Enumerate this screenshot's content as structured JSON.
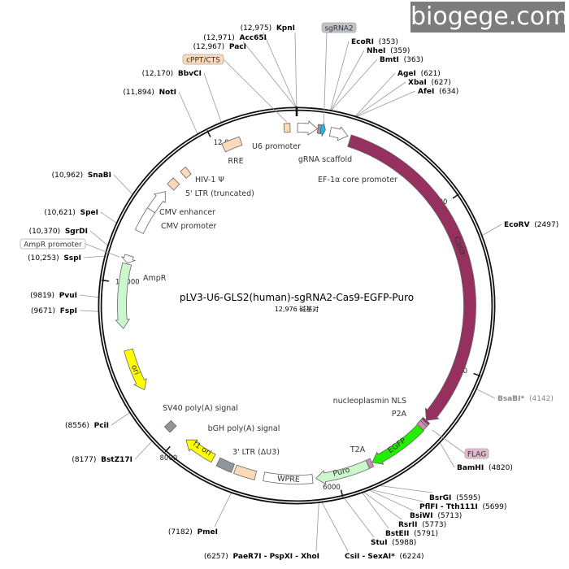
{
  "plasmid": {
    "name": "pLV3-U6-GLS2(human)-sgRNA2-Cas9-EGFP-Puro",
    "length_label": "12,976 碱基对",
    "length_bp": 12976
  },
  "ticks": [
    {
      "bp": 2000,
      "label": "2000"
    },
    {
      "bp": 4000,
      "label": "4000"
    },
    {
      "bp": 6000,
      "label": "6000"
    },
    {
      "bp": 8000,
      "label": "8000"
    },
    {
      "bp": 10000,
      "label": "10,000"
    },
    {
      "bp": 12000,
      "label": "12,000"
    }
  ],
  "features": [
    {
      "name": "cPPT/CTS",
      "label": "",
      "start": 12830,
      "end": 12900,
      "type": "box",
      "color": "#fcd9b8"
    },
    {
      "name": "U6 promoter",
      "label": "U6 promoter",
      "start": 10,
      "end": 240,
      "type": "arrow",
      "direction": "cw",
      "color": "#ffffff"
    },
    {
      "name": "gRNA scaffold",
      "label": "gRNA scaffold",
      "start": 245,
      "end": 282,
      "type": "box",
      "color": "#8f959c"
    },
    {
      "name": "sgRNA2",
      "label": "",
      "start": 282,
      "end": 335,
      "type": "arrow",
      "direction": "cw",
      "color": "#1ab8f0"
    },
    {
      "name": "EF-1α core promoter",
      "label": "EF-1α core promoter",
      "start": 395,
      "end": 605,
      "type": "arrow",
      "direction": "cw",
      "color": "#ffffff"
    },
    {
      "name": "Cas9",
      "label": "Cas9",
      "start": 640,
      "end": 4740,
      "type": "arrow",
      "direction": "cw",
      "color": "#96305f"
    },
    {
      "name": "nucleoplasmin NLS",
      "label": "nucleoplasmin NLS",
      "start": 4740,
      "end": 4765,
      "type": "box",
      "color": "#96305f"
    },
    {
      "name": "FLAG",
      "label": "",
      "start": 4765,
      "end": 4790,
      "type": "box",
      "color": "#c98fae"
    },
    {
      "name": "P2A",
      "label": "P2A",
      "start": 4790,
      "end": 4850,
      "type": "box",
      "color": "#c98fae"
    },
    {
      "name": "EGFP",
      "label": "EGFP",
      "start": 4850,
      "end": 5560,
      "type": "arrow",
      "direction": "cw",
      "color": "#22ee00"
    },
    {
      "name": "T2A",
      "label": "T2A",
      "start": 5565,
      "end": 5620,
      "type": "box",
      "color": "#c98fae"
    },
    {
      "name": "Puro",
      "label": "Puro",
      "start": 5620,
      "end": 6260,
      "type": "arrow",
      "direction": "cw",
      "color": "#ccf7cc"
    },
    {
      "name": "WPRE",
      "label": "WPRE",
      "start": 6300,
      "end": 6880,
      "type": "box",
      "color": "#ffffff"
    },
    {
      "name": "3' LTR (ΔU3)",
      "label": "3' LTR (ΔU3)",
      "start": 6980,
      "end": 7230,
      "type": "box",
      "color": "#fcd9b8"
    },
    {
      "name": "bGH poly(A) signal",
      "label": "bGH poly(A) signal",
      "start": 7260,
      "end": 7450,
      "type": "box",
      "color": "#8f959c"
    },
    {
      "name": "f1 ori",
      "label": "f1 ori",
      "start": 7520,
      "end": 7910,
      "type": "arrow",
      "direction": "cw",
      "color": "#ffff00"
    },
    {
      "name": "SV40 poly(A) signal",
      "label": "SV40 poly(A) signal",
      "start": 8110,
      "end": 8200,
      "type": "box",
      "color": "#8f959c"
    },
    {
      "name": "ori",
      "label": "ori",
      "start": 8690,
      "end": 9200,
      "type": "arrow",
      "direction": "ccw",
      "color": "#ffff00"
    },
    {
      "name": "AmpR",
      "label": "AmpR",
      "start": 9460,
      "end": 10230,
      "type": "arrow",
      "direction": "ccw",
      "color": "#ccf7cc"
    },
    {
      "name": "AmpR promoter",
      "label": "",
      "start": 10240,
      "end": 10330,
      "type": "arrow",
      "direction": "ccw",
      "color": "#ffffff"
    },
    {
      "name": "CMV enhancer",
      "label": "CMV enhancer",
      "start": 10640,
      "end": 10930,
      "type": "box",
      "color": "#ffffff"
    },
    {
      "name": "CMV promoter",
      "label": "CMV promoter",
      "start": 10930,
      "end": 11210,
      "type": "arrow",
      "direction": "cw",
      "color": "#ffffff"
    },
    {
      "name": "5' LTR (truncated)",
      "label": "5' LTR (truncated)",
      "start": 11290,
      "end": 11390,
      "type": "box",
      "color": "#fcd9b8"
    },
    {
      "name": "HIV-1 Ψ",
      "label": "HIV-1 Ψ",
      "start": 11500,
      "end": 11580,
      "type": "box",
      "color": "#fcd9b8"
    },
    {
      "name": "RRE",
      "label": "RRE",
      "start": 12080,
      "end": 12300,
      "type": "box",
      "color": "#fcd9b8"
    }
  ],
  "callouts": [
    {
      "text": "cPPT/CTS",
      "bp": 12865,
      "color": "#fcd9b8"
    },
    {
      "text": "sgRNA2",
      "bp": 305,
      "color": "#c0c4c8"
    },
    {
      "text": "AmpR promoter",
      "bp": 10285,
      "color": "#ffffff"
    },
    {
      "text": "FLAG",
      "bp": 4778,
      "color": "#e2b8cc"
    }
  ],
  "sites": [
    {
      "name": "KpnI",
      "pos": "(12,975)",
      "bp": 12975
    },
    {
      "name": "Acc65I",
      "pos": "(12,971)",
      "bp": 12971
    },
    {
      "name": "PacI",
      "pos": "(12,967)",
      "bp": 12967
    },
    {
      "name": "BbvCI",
      "pos": "(12,170)",
      "bp": 12170
    },
    {
      "name": "NotI",
      "pos": "(11,894)",
      "bp": 11894
    },
    {
      "name": "SnaBI",
      "pos": "(10,962)",
      "bp": 10962
    },
    {
      "name": "SpeI",
      "pos": "(10,621)",
      "bp": 10621
    },
    {
      "name": "SgrDI",
      "pos": "(10,370)",
      "bp": 10370
    },
    {
      "name": "SspI",
      "pos": "(10,253)",
      "bp": 10253
    },
    {
      "name": "PvuI",
      "pos": "(9819)",
      "bp": 9819
    },
    {
      "name": "FspI",
      "pos": "(9671)",
      "bp": 9671
    },
    {
      "name": "PciI",
      "pos": "(8556)",
      "bp": 8556
    },
    {
      "name": "BstZ17I",
      "pos": "(8177)",
      "bp": 8177
    },
    {
      "name": "PmeI",
      "pos": "(7182)",
      "bp": 7182
    },
    {
      "name": "PaeR7I - PspXI - XhoI",
      "pos": "(6257)",
      "bp": 6257
    },
    {
      "name": "EcoRI",
      "pos": "(353)",
      "bp": 353
    },
    {
      "name": "NheI",
      "pos": "(359)",
      "bp": 359
    },
    {
      "name": "BmtI",
      "pos": "(363)",
      "bp": 363
    },
    {
      "name": "AgeI",
      "pos": "(621)",
      "bp": 621
    },
    {
      "name": "XbaI",
      "pos": "(627)",
      "bp": 627
    },
    {
      "name": "AfeI",
      "pos": "(634)",
      "bp": 634
    },
    {
      "name": "EcoRV",
      "pos": "(2497)",
      "bp": 2497
    },
    {
      "name": "BsaBI*",
      "pos": "(4142)",
      "bp": 4142,
      "muted": true
    },
    {
      "name": "BamHI",
      "pos": "(4820)",
      "bp": 4820
    },
    {
      "name": "BsrGI",
      "pos": "(5595)",
      "bp": 5595
    },
    {
      "name": "PflFI - Tth111I",
      "pos": "(5699)",
      "bp": 5699
    },
    {
      "name": "BsiWI",
      "pos": "(5713)",
      "bp": 5713
    },
    {
      "name": "RsrII",
      "pos": "(5773)",
      "bp": 5773
    },
    {
      "name": "BstEII",
      "pos": "(5791)",
      "bp": 5791
    },
    {
      "name": "StuI",
      "pos": "(5988)",
      "bp": 5988
    },
    {
      "name": "CsiI - SexAI*",
      "pos": "(6224)",
      "bp": 6224
    }
  ],
  "watermark": "biogege.com"
}
